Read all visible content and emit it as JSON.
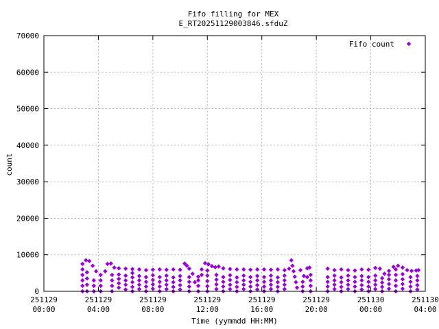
{
  "chart_data": {
    "type": "scatter",
    "title": "Fifo filling for MEX",
    "subtitle": "E_RT20251129003846.sfduZ",
    "xlabel": "Time (yymmdd HH:MM)",
    "ylabel": "count",
    "xlim": [
      "2025-11-29 00:00",
      "2025-11-30 04:00"
    ],
    "ylim": [
      0,
      70000
    ],
    "grid": true,
    "legend_position": "top-right",
    "x_ticks": [
      {
        "date": "251129",
        "time": "00:00"
      },
      {
        "date": "251129",
        "time": "04:00"
      },
      {
        "date": "251129",
        "time": "08:00"
      },
      {
        "date": "251129",
        "time": "12:00"
      },
      {
        "date": "251129",
        "time": "16:00"
      },
      {
        "date": "251129",
        "time": "20:00"
      },
      {
        "date": "251130",
        "time": "00:00"
      },
      {
        "date": "251130",
        "time": "04:00"
      }
    ],
    "y_ticks": [
      "0",
      "10000",
      "20000",
      "30000",
      "40000",
      "50000",
      "60000",
      "70000"
    ],
    "series": [
      {
        "name": "Fifo count",
        "color": "#9400d3",
        "marker": "diamond",
        "points": [
          [
            "2025-11-29 02:50",
            0
          ],
          [
            "2025-11-29 02:50",
            1500
          ],
          [
            "2025-11-29 02:50",
            3000
          ],
          [
            "2025-11-29 02:50",
            4500
          ],
          [
            "2025-11-29 02:50",
            6000
          ],
          [
            "2025-11-29 02:50",
            7500
          ],
          [
            "2025-11-29 03:05",
            8500
          ],
          [
            "2025-11-29 03:20",
            8300
          ],
          [
            "2025-11-29 03:35",
            7000
          ],
          [
            "2025-11-29 03:50",
            5500
          ],
          [
            "2025-11-29 04:10",
            4500
          ],
          [
            "2025-11-29 03:10",
            0
          ],
          [
            "2025-11-29 03:10",
            1800
          ],
          [
            "2025-11-29 03:10",
            3500
          ],
          [
            "2025-11-29 03:10",
            5200
          ],
          [
            "2025-11-29 03:40",
            0
          ],
          [
            "2025-11-29 03:40",
            1500
          ],
          [
            "2025-11-29 03:40",
            3000
          ],
          [
            "2025-11-29 04:10",
            0
          ],
          [
            "2025-11-29 04:10",
            1500
          ],
          [
            "2025-11-29 04:10",
            3000
          ],
          [
            "2025-11-29 04:30",
            5500
          ],
          [
            "2025-11-29 04:40",
            7500
          ],
          [
            "2025-11-29 04:55",
            7600
          ],
          [
            "2025-11-29 05:10",
            6500
          ],
          [
            "2025-11-29 05:00",
            0
          ],
          [
            "2025-11-29 05:00",
            1500
          ],
          [
            "2025-11-29 05:00",
            3000
          ],
          [
            "2025-11-29 05:00",
            4500
          ],
          [
            "2025-11-29 05:30",
            6300
          ],
          [
            "2025-11-29 06:00",
            6200
          ],
          [
            "2025-11-29 06:30",
            6100
          ],
          [
            "2025-11-29 07:00",
            6000
          ],
          [
            "2025-11-29 07:30",
            5800
          ],
          [
            "2025-11-29 08:00",
            5900
          ],
          [
            "2025-11-29 05:30",
            1000
          ],
          [
            "2025-11-29 05:30",
            2200
          ],
          [
            "2025-11-29 05:30",
            3400
          ],
          [
            "2025-11-29 05:30",
            4600
          ],
          [
            "2025-11-29 06:00",
            500
          ],
          [
            "2025-11-29 06:00",
            1800
          ],
          [
            "2025-11-29 06:00",
            3000
          ],
          [
            "2025-11-29 06:00",
            4300
          ],
          [
            "2025-11-29 06:30",
            0
          ],
          [
            "2025-11-29 06:30",
            1200
          ],
          [
            "2025-11-29 06:30",
            2500
          ],
          [
            "2025-11-29 06:30",
            3800
          ],
          [
            "2025-11-29 06:30",
            5000
          ],
          [
            "2025-11-29 07:00",
            600
          ],
          [
            "2025-11-29 07:00",
            1800
          ],
          [
            "2025-11-29 07:00",
            3000
          ],
          [
            "2025-11-29 07:00",
            4200
          ],
          [
            "2025-11-29 07:30",
            0
          ],
          [
            "2025-11-29 07:30",
            1300
          ],
          [
            "2025-11-29 07:30",
            2600
          ],
          [
            "2025-11-29 07:30",
            3900
          ],
          [
            "2025-11-29 08:00",
            700
          ],
          [
            "2025-11-29 08:00",
            1900
          ],
          [
            "2025-11-29 08:00",
            3100
          ],
          [
            "2025-11-29 08:00",
            4400
          ],
          [
            "2025-11-29 08:30",
            6000
          ],
          [
            "2025-11-29 09:00",
            5900
          ],
          [
            "2025-11-29 09:30",
            6000
          ],
          [
            "2025-11-29 10:00",
            5900
          ],
          [
            "2025-11-29 08:30",
            0
          ],
          [
            "2025-11-29 08:30",
            1300
          ],
          [
            "2025-11-29 08:30",
            2600
          ],
          [
            "2025-11-29 08:30",
            3900
          ],
          [
            "2025-11-29 09:00",
            600
          ],
          [
            "2025-11-29 09:00",
            1800
          ],
          [
            "2025-11-29 09:00",
            3000
          ],
          [
            "2025-11-29 09:00",
            4300
          ],
          [
            "2025-11-29 09:30",
            0
          ],
          [
            "2025-11-29 09:30",
            1200
          ],
          [
            "2025-11-29 09:30",
            2500
          ],
          [
            "2025-11-29 09:30",
            3800
          ],
          [
            "2025-11-29 10:00",
            500
          ],
          [
            "2025-11-29 10:00",
            1700
          ],
          [
            "2025-11-29 10:00",
            3000
          ],
          [
            "2025-11-29 10:00",
            4200
          ],
          [
            "2025-11-29 10:20",
            7600
          ],
          [
            "2025-11-29 10:30",
            7000
          ],
          [
            "2025-11-29 10:40",
            6200
          ],
          [
            "2025-11-29 10:55",
            4800
          ],
          [
            "2025-11-29 10:40",
            0
          ],
          [
            "2025-11-29 10:40",
            1300
          ],
          [
            "2025-11-29 10:40",
            2600
          ],
          [
            "2025-11-29 10:40",
            3900
          ],
          [
            "2025-11-29 11:05",
            2500
          ],
          [
            "2025-11-29 11:20",
            4000
          ],
          [
            "2025-11-29 11:35",
            6000
          ],
          [
            "2025-11-29 11:50",
            7700
          ],
          [
            "2025-11-29 12:05",
            7400
          ],
          [
            "2025-11-29 12:20",
            6900
          ],
          [
            "2025-11-29 12:35",
            6600
          ],
          [
            "2025-11-29 12:50",
            6800
          ],
          [
            "2025-11-29 11:20",
            0
          ],
          [
            "2025-11-29 11:20",
            1500
          ],
          [
            "2025-11-29 11:20",
            3000
          ],
          [
            "2025-11-29 11:35",
            4500
          ],
          [
            "2025-11-29 12:00",
            0
          ],
          [
            "2025-11-29 12:00",
            1400
          ],
          [
            "2025-11-29 12:00",
            2800
          ],
          [
            "2025-11-29 12:00",
            4300
          ],
          [
            "2025-11-29 12:00",
            5700
          ],
          [
            "2025-11-29 12:40",
            600
          ],
          [
            "2025-11-29 12:40",
            1900
          ],
          [
            "2025-11-29 12:40",
            3200
          ],
          [
            "2025-11-29 12:40",
            4500
          ],
          [
            "2025-11-29 13:10",
            6300
          ],
          [
            "2025-11-29 13:40",
            6100
          ],
          [
            "2025-11-29 14:10",
            6000
          ],
          [
            "2025-11-29 14:40",
            6000
          ],
          [
            "2025-11-29 15:10",
            5900
          ],
          [
            "2025-11-29 15:40",
            6000
          ],
          [
            "2025-11-29 13:10",
            0
          ],
          [
            "2025-11-29 13:10",
            1300
          ],
          [
            "2025-11-29 13:10",
            2600
          ],
          [
            "2025-11-29 13:10",
            3900
          ],
          [
            "2025-11-29 13:40",
            600
          ],
          [
            "2025-11-29 13:40",
            1800
          ],
          [
            "2025-11-29 13:40",
            3100
          ],
          [
            "2025-11-29 13:40",
            4400
          ],
          [
            "2025-11-29 14:10",
            0
          ],
          [
            "2025-11-29 14:10",
            1200
          ],
          [
            "2025-11-29 14:10",
            2500
          ],
          [
            "2025-11-29 14:10",
            3800
          ],
          [
            "2025-11-29 14:40",
            600
          ],
          [
            "2025-11-29 14:40",
            1800
          ],
          [
            "2025-11-29 14:40",
            3000
          ],
          [
            "2025-11-29 14:40",
            4300
          ],
          [
            "2025-11-29 15:10",
            0
          ],
          [
            "2025-11-29 15:10",
            1300
          ],
          [
            "2025-11-29 15:10",
            2600
          ],
          [
            "2025-11-29 15:10",
            3900
          ],
          [
            "2025-11-29 15:40",
            500
          ],
          [
            "2025-11-29 15:40",
            1700
          ],
          [
            "2025-11-29 15:40",
            3000
          ],
          [
            "2025-11-29 15:40",
            4200
          ],
          [
            "2025-11-29 16:10",
            6000
          ],
          [
            "2025-11-29 16:40",
            5900
          ],
          [
            "2025-11-29 17:10",
            6000
          ],
          [
            "2025-11-29 17:40",
            5800
          ],
          [
            "2025-11-29 18:00",
            6200
          ],
          [
            "2025-11-29 16:10",
            0
          ],
          [
            "2025-11-29 16:10",
            1300
          ],
          [
            "2025-11-29 16:10",
            2600
          ],
          [
            "2025-11-29 16:10",
            3900
          ],
          [
            "2025-11-29 16:40",
            600
          ],
          [
            "2025-11-29 16:40",
            1800
          ],
          [
            "2025-11-29 16:40",
            3000
          ],
          [
            "2025-11-29 16:40",
            4300
          ],
          [
            "2025-11-29 17:10",
            0
          ],
          [
            "2025-11-29 17:10",
            1200
          ],
          [
            "2025-11-29 17:10",
            2500
          ],
          [
            "2025-11-29 17:10",
            3800
          ],
          [
            "2025-11-29 17:40",
            600
          ],
          [
            "2025-11-29 17:40",
            1800
          ],
          [
            "2025-11-29 17:40",
            3000
          ],
          [
            "2025-11-29 17:40",
            4300
          ],
          [
            "2025-11-29 18:10",
            8500
          ],
          [
            "2025-11-29 18:15",
            7000
          ],
          [
            "2025-11-29 18:20",
            5500
          ],
          [
            "2025-11-29 18:25",
            4000
          ],
          [
            "2025-11-29 18:30",
            2500
          ],
          [
            "2025-11-29 18:35",
            1000
          ],
          [
            "2025-11-29 18:50",
            5800
          ],
          [
            "2025-11-29 19:05",
            4200
          ],
          [
            "2025-11-29 19:20",
            6300
          ],
          [
            "2025-11-29 19:30",
            6500
          ],
          [
            "2025-11-29 19:00",
            0
          ],
          [
            "2025-11-29 19:00",
            1300
          ],
          [
            "2025-11-29 19:00",
            2600
          ],
          [
            "2025-11-29 19:20",
            3900
          ],
          [
            "2025-11-29 19:35",
            0
          ],
          [
            "2025-11-29 19:35",
            1500
          ],
          [
            "2025-11-29 19:35",
            3000
          ],
          [
            "2025-11-29 19:35",
            4500
          ],
          [
            "2025-11-29 20:50",
            6200
          ],
          [
            "2025-11-29 21:20",
            5800
          ],
          [
            "2025-11-29 21:50",
            6000
          ],
          [
            "2025-11-29 22:20",
            5800
          ],
          [
            "2025-11-29 22:50",
            5700
          ],
          [
            "2025-11-29 23:20",
            6000
          ],
          [
            "2025-11-29 23:50",
            5900
          ],
          [
            "2025-11-29 20:50",
            0
          ],
          [
            "2025-11-29 20:50",
            1300
          ],
          [
            "2025-11-29 20:50",
            2600
          ],
          [
            "2025-11-29 20:50",
            3900
          ],
          [
            "2025-11-29 21:20",
            600
          ],
          [
            "2025-11-29 21:20",
            1800
          ],
          [
            "2025-11-29 21:20",
            3000
          ],
          [
            "2025-11-29 21:20",
            4300
          ],
          [
            "2025-11-29 21:50",
            0
          ],
          [
            "2025-11-29 21:50",
            1200
          ],
          [
            "2025-11-29 21:50",
            2500
          ],
          [
            "2025-11-29 21:50",
            3800
          ],
          [
            "2025-11-29 22:20",
            600
          ],
          [
            "2025-11-29 22:20",
            1800
          ],
          [
            "2025-11-29 22:20",
            3000
          ],
          [
            "2025-11-29 22:20",
            4300
          ],
          [
            "2025-11-29 22:50",
            0
          ],
          [
            "2025-11-29 22:50",
            1300
          ],
          [
            "2025-11-29 22:50",
            2600
          ],
          [
            "2025-11-29 22:50",
            3900
          ],
          [
            "2025-11-29 23:20",
            500
          ],
          [
            "2025-11-29 23:20",
            1700
          ],
          [
            "2025-11-29 23:20",
            3000
          ],
          [
            "2025-11-29 23:20",
            4200
          ],
          [
            "2025-11-29 23:50",
            0
          ],
          [
            "2025-11-29 23:50",
            1300
          ],
          [
            "2025-11-29 23:50",
            2600
          ],
          [
            "2025-11-29 23:50",
            3900
          ],
          [
            "2025-11-30 00:20",
            6400
          ],
          [
            "2025-11-30 00:40",
            6200
          ],
          [
            "2025-11-30 01:00",
            4800
          ],
          [
            "2025-11-30 01:20",
            5600
          ],
          [
            "2025-11-30 01:40",
            6700
          ],
          [
            "2025-11-30 02:00",
            7000
          ],
          [
            "2025-11-30 02:20",
            6500
          ],
          [
            "2025-11-30 02:40",
            5800
          ],
          [
            "2025-11-30 00:20",
            600
          ],
          [
            "2025-11-30 00:20",
            1800
          ],
          [
            "2025-11-30 00:20",
            3000
          ],
          [
            "2025-11-30 00:20",
            4300
          ],
          [
            "2025-11-30 00:50",
            0
          ],
          [
            "2025-11-30 00:50",
            1200
          ],
          [
            "2025-11-30 00:50",
            2400
          ],
          [
            "2025-11-30 00:50",
            3600
          ],
          [
            "2025-11-30 01:20",
            700
          ],
          [
            "2025-11-30 01:20",
            2000
          ],
          [
            "2025-11-30 01:20",
            3300
          ],
          [
            "2025-11-30 01:20",
            4500
          ],
          [
            "2025-11-30 01:50",
            0
          ],
          [
            "2025-11-30 01:50",
            1500
          ],
          [
            "2025-11-30 01:50",
            3000
          ],
          [
            "2025-11-30 01:50",
            4500
          ],
          [
            "2025-11-30 01:50",
            6000
          ],
          [
            "2025-11-30 02:20",
            700
          ],
          [
            "2025-11-30 02:20",
            2000
          ],
          [
            "2025-11-30 02:20",
            3300
          ],
          [
            "2025-11-30 02:20",
            4700
          ],
          [
            "2025-11-30 03:00",
            5600
          ],
          [
            "2025-11-30 03:20",
            5700
          ],
          [
            "2025-11-30 03:30",
            5800
          ],
          [
            "2025-11-30 02:55",
            0
          ],
          [
            "2025-11-30 02:55",
            1300
          ],
          [
            "2025-11-30 02:55",
            2600
          ],
          [
            "2025-11-30 02:55",
            3900
          ],
          [
            "2025-11-30 03:25",
            500
          ],
          [
            "2025-11-30 03:25",
            1700
          ],
          [
            "2025-11-30 03:25",
            3000
          ],
          [
            "2025-11-30 03:25",
            4200
          ]
        ]
      }
    ]
  }
}
